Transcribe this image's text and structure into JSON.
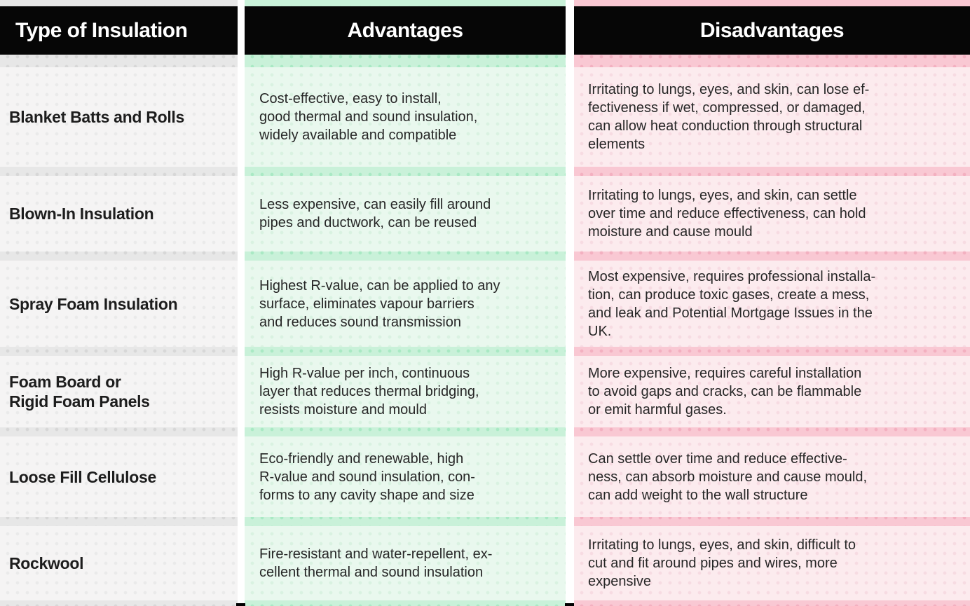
{
  "table": {
    "headers": {
      "type": "Type of Insulation",
      "advantages": "Advantages",
      "disadvantages": "Disadvantages"
    },
    "rows": [
      {
        "type": "Blanket Batts and Rolls",
        "advantages": "Cost-effective, easy to install,\ngood thermal and sound insulation,\nwidely available and compatible",
        "disadvantages": "Irritating to lungs, eyes, and skin, can lose ef-\nfectiveness if wet, compressed, or damaged,\ncan allow heat conduction through structural\nelements"
      },
      {
        "type": "Blown-In Insulation",
        "advantages": "Less expensive, can easily fill around\npipes and ductwork, can be reused",
        "disadvantages": "Irritating to lungs, eyes, and skin, can settle\nover time and reduce effectiveness, can hold\nmoisture and cause mould"
      },
      {
        "type": "Spray Foam Insulation",
        "advantages": "Highest R-value, can be applied to any\nsurface, eliminates vapour barriers\nand reduces sound transmission",
        "disadvantages": "Most expensive, requires professional installa-\ntion, can produce toxic gases, create a mess,\nand leak and Potential Mortgage Issues in the\nUK."
      },
      {
        "type": "Foam Board or\nRigid Foam Panels",
        "advantages": "High R-value per inch, continuous\nlayer that reduces thermal bridging,\nresists moisture and mould",
        "disadvantages": "More expensive, requires careful installation\nto avoid gaps and cracks, can be flammable\nor emit harmful gases."
      },
      {
        "type": "Loose Fill Cellulose",
        "advantages": "Eco-friendly and renewable, high\nR-value and sound insulation, con-\nforms to any cavity shape and size",
        "disadvantages": "Can settle over time and reduce effective-\nness, can absorb moisture and cause mould,\ncan add weight to the wall structure"
      },
      {
        "type": "Rockwool",
        "advantages": "Fire-resistant and water-repellent, ex-\ncellent thermal and sound insulation",
        "disadvantages": "Irritating to lungs, eyes, and skin, difficult to\ncut and fit around pipes and wires, more\nexpensive"
      }
    ]
  },
  "colors": {
    "header_bg": "#060606",
    "header_text": "#ffffff",
    "type_column_bg": "#e7e7e7",
    "type_cell_bg": "#f5f4f4",
    "advantages_column_bg": "#c9f1d9",
    "advantages_cell_bg": "#e9f8ee",
    "disadvantages_column_bg": "#f9c8d3",
    "disadvantages_cell_bg": "#fcebee",
    "body_text": "#272727"
  }
}
